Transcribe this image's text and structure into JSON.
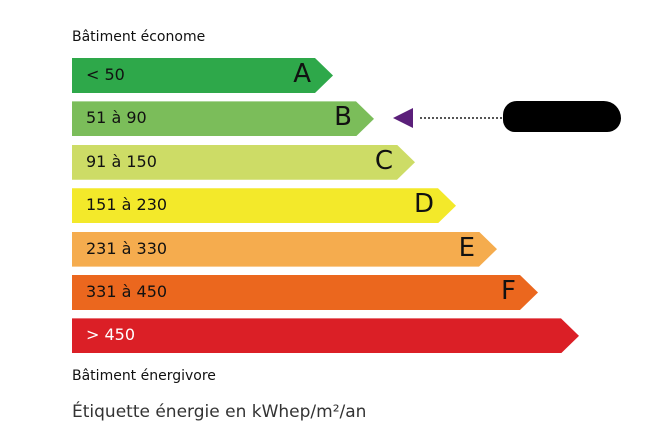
{
  "top_label": "Bâtiment économe",
  "bottom_label": "Bâtiment énergivore",
  "footer": "Étiquette énergie en kWhep/m²/an",
  "classes": [
    {
      "range": "< 50",
      "letter": "A",
      "color": "#2ea84a"
    },
    {
      "range": "51 à 90",
      "letter": "B",
      "color": "#7bbd5a"
    },
    {
      "range": "91 à 150",
      "letter": "C",
      "color": "#cddc66"
    },
    {
      "range": "151 à 230",
      "letter": "D",
      "color": "#f3e92a"
    },
    {
      "range": "231 à 330",
      "letter": "E",
      "color": "#f5ac4e"
    },
    {
      "range": "331 à 450",
      "letter": "F",
      "color": "#eb671e"
    },
    {
      "range": "> 450",
      "letter": "",
      "color": "#db1f26"
    }
  ],
  "indicator": {
    "class": "B",
    "color": "#5b1f7a"
  }
}
